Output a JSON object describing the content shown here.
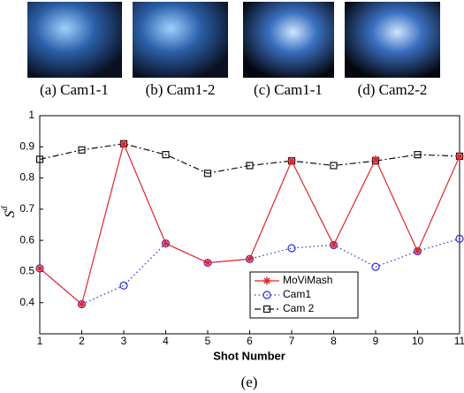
{
  "panels": [
    {
      "caption": "(a) Cam1-1"
    },
    {
      "caption": "(b) Cam1-2"
    },
    {
      "caption": "(c) Cam1-1"
    },
    {
      "caption": "(d) Cam2-2"
    }
  ],
  "chart_caption": "(e)",
  "chart_data": {
    "type": "line",
    "xlabel": "Shot Number",
    "ylabel": "S",
    "ylabel_sup": "d",
    "x": [
      1,
      2,
      3,
      4,
      5,
      6,
      7,
      8,
      9,
      10,
      11
    ],
    "xlim": [
      1,
      11
    ],
    "xticks": [
      1,
      2,
      3,
      4,
      5,
      6,
      7,
      8,
      9,
      10,
      11
    ],
    "ylim": [
      0.3,
      1
    ],
    "yticks": [
      0.4,
      0.5,
      0.6,
      0.7,
      0.8,
      0.9,
      1
    ],
    "legend": "lower center",
    "series": [
      {
        "name": "MoViMash",
        "color": "#e0242c",
        "line_style": "solid",
        "marker": "star",
        "values": [
          0.51,
          0.395,
          0.91,
          0.59,
          0.528,
          0.54,
          0.855,
          0.585,
          0.86,
          0.565,
          0.87
        ]
      },
      {
        "name": "Cam1",
        "color": "#2a2ad8",
        "line_style": "dotted",
        "marker": "circle",
        "values": [
          0.51,
          0.395,
          0.455,
          0.59,
          0.528,
          0.54,
          0.575,
          0.585,
          0.515,
          0.565,
          0.605
        ]
      },
      {
        "name": "Cam 2",
        "color": "#111111",
        "line_style": "dashdot",
        "marker": "square",
        "values": [
          0.86,
          0.89,
          0.91,
          0.875,
          0.815,
          0.84,
          0.855,
          0.84,
          0.855,
          0.875,
          0.87
        ]
      }
    ]
  }
}
